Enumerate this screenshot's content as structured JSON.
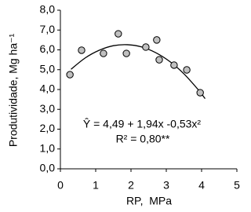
{
  "chart_data": {
    "type": "scatter",
    "x_label": "RP,  MPa",
    "y_label": "Produtividade, Mg ha⁻¹",
    "annotations": [
      "Ŷ = 4,49 + 1,94x -0,53x²",
      "R² = 0,80**"
    ],
    "xlim": [
      0,
      5
    ],
    "xticks": [
      0,
      1,
      2,
      3,
      4,
      5
    ],
    "ylim": [
      0,
      8
    ],
    "yticks": [
      {
        "value": 0,
        "label": "0,0"
      },
      {
        "value": 1,
        "label": "1,0"
      },
      {
        "value": 2,
        "label": "2,0"
      },
      {
        "value": 3,
        "label": "3,0"
      },
      {
        "value": 4,
        "label": "4,0"
      },
      {
        "value": 5,
        "label": "5,0"
      },
      {
        "value": 6,
        "label": "6,0"
      },
      {
        "value": 7,
        "label": "7,0"
      },
      {
        "value": 8,
        "label": "8,0"
      }
    ],
    "grid": false,
    "series": [
      {
        "type": "scatter",
        "color": "#c0c0c0",
        "x": [
          0.27,
          0.6,
          1.22,
          1.64,
          1.87,
          2.42,
          2.73,
          2.8,
          3.22,
          3.58,
          3.96
        ],
        "values": [
          4.75,
          5.98,
          5.82,
          6.81,
          5.82,
          6.14,
          6.5,
          5.5,
          5.23,
          4.99,
          3.84
        ]
      },
      {
        "type": "line",
        "color": "#000000",
        "x": [
          0.3,
          0.7,
          1.1,
          1.5,
          1.9,
          2.3,
          2.7,
          3.1,
          3.5,
          3.9,
          4.1
        ],
        "values": [
          5.02,
          5.59,
          5.98,
          6.21,
          6.26,
          6.15,
          5.86,
          5.41,
          4.79,
          4.0,
          3.54
        ]
      }
    ]
  }
}
